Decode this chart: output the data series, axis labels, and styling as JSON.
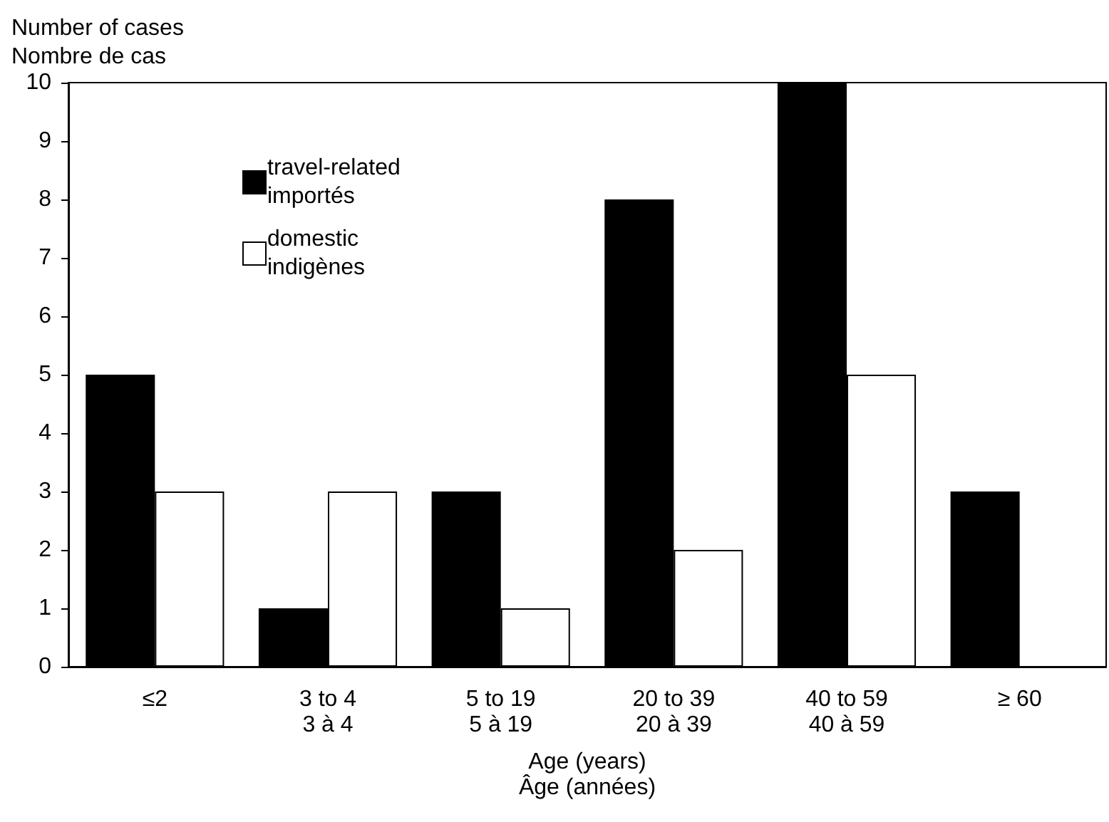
{
  "chart_data": {
    "type": "bar",
    "xlabel": "Age (years)\nÂge (années)",
    "ylabel": "Number of cases\nNombre de cas",
    "categories": [
      "≤2",
      "3 to 4\n3 à 4",
      "5 to 19\n5 à 19",
      "20 to 39\n20 à 39",
      "40 to 59\n40 à 59",
      "≥ 60"
    ],
    "series": [
      {
        "name": "travel-related\nimportés",
        "color": "#000000",
        "values": [
          5,
          1,
          3,
          8,
          10,
          3
        ]
      },
      {
        "name": "domestic\nindigènes",
        "color": "#ffffff",
        "values": [
          3,
          3,
          1,
          2,
          5,
          0
        ]
      }
    ],
    "ylim": [
      0,
      10
    ],
    "yticks": [
      0,
      1,
      2,
      3,
      4,
      5,
      6,
      7,
      8,
      9,
      10
    ],
    "grid": false,
    "legend": "top left"
  }
}
